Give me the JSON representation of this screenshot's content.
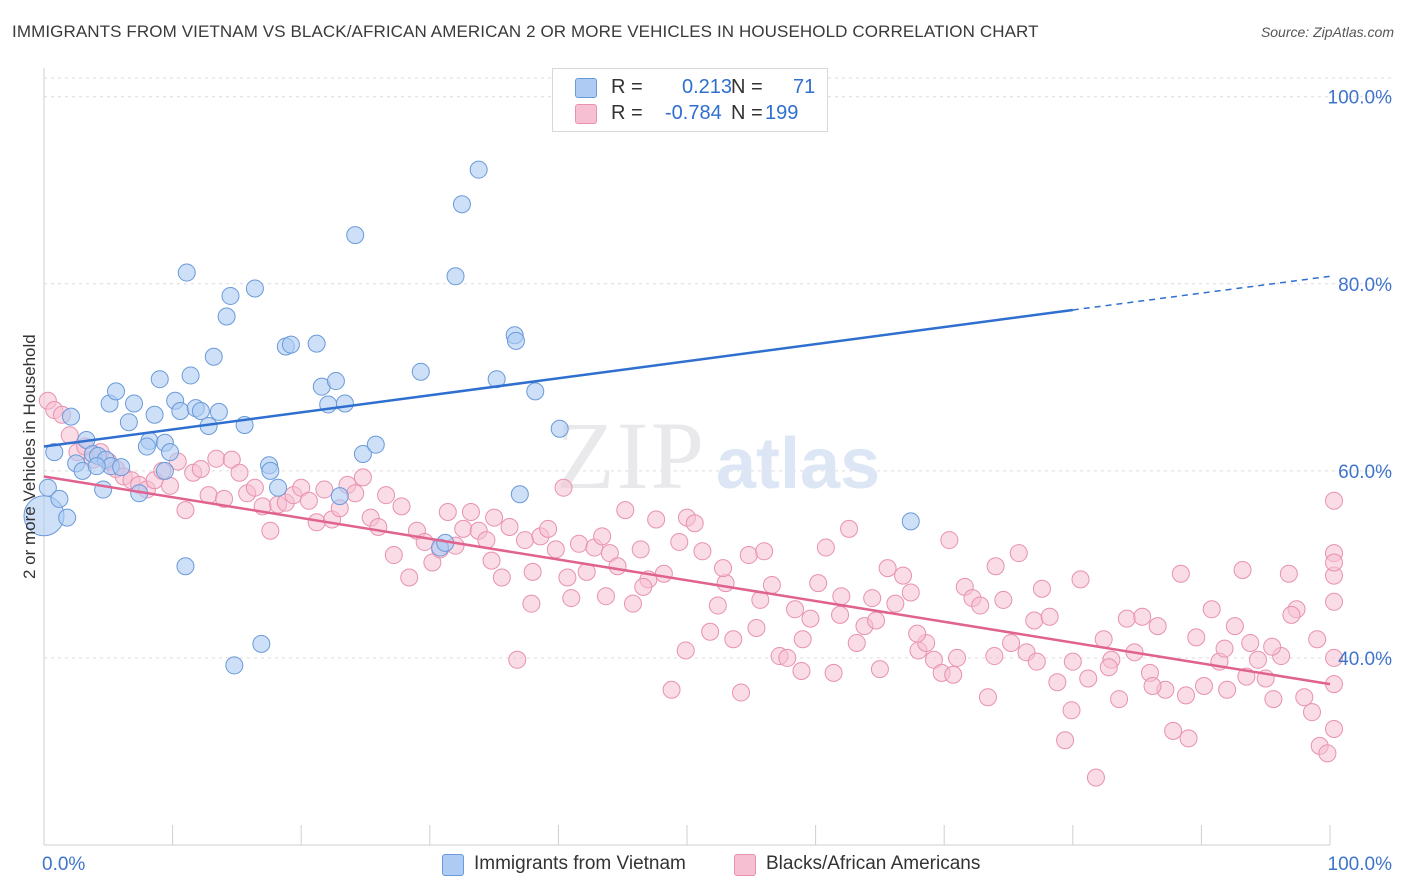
{
  "title": "IMMIGRANTS FROM VIETNAM VS BLACK/AFRICAN AMERICAN 2 OR MORE VEHICLES IN HOUSEHOLD CORRELATION CHART",
  "source": "Source: ZipAtlas.com",
  "watermark": "ZIPatlas",
  "legend": {
    "r_label": "R =",
    "n_label": "N =",
    "series1": {
      "r": "0.213",
      "n": "71"
    },
    "series2": {
      "r": "-0.784",
      "n": "199"
    }
  },
  "bottom_legend": {
    "series1": "Immigrants from Vietnam",
    "series2": "Blacks/African Americans"
  },
  "colors": {
    "blue_fill": "#aecbf3",
    "blue_stroke": "#6a9ad8",
    "blue_line": "#2f6fd0",
    "pink_fill": "#f6bfd2",
    "pink_stroke": "#e891b1",
    "pink_line": "#e0628f",
    "axis_label": "#3f74cc",
    "grid": "#dcdcdc"
  },
  "chart_data": {
    "type": "scatter",
    "title": "IMMIGRANTS FROM VIETNAM VS BLACK/AFRICAN AMERICAN 2 OR MORE VEHICLES IN HOUSEHOLD CORRELATION CHART",
    "xlabel": "",
    "ylabel": "2 or more Vehicles in Household",
    "xlim": [
      0,
      100
    ],
    "ylim": [
      20,
      102
    ],
    "x_tick_labels": [
      "0.0%",
      "100.0%"
    ],
    "y_tick_labels": [
      "40.0%",
      "60.0%",
      "80.0%",
      "100.0%"
    ],
    "y_ticks": [
      40,
      60,
      80,
      100
    ],
    "grid": true,
    "legend_position": "top-center",
    "series": [
      {
        "name": "Immigrants from Vietnam",
        "r": 0.213,
        "n": 71,
        "trend": {
          "x0": 0,
          "y0": 62.6,
          "x1": 80,
          "y1": 77.2,
          "dashed_to_x": 100,
          "dashed_to_y": 80.8
        },
        "points": [
          [
            0,
            55.2
          ],
          [
            0.3,
            58.2
          ],
          [
            0.8,
            62
          ],
          [
            1.2,
            57
          ],
          [
            1.8,
            55
          ],
          [
            2.1,
            65.8
          ],
          [
            2.5,
            60.8
          ],
          [
            3,
            60
          ],
          [
            3.3,
            63.3
          ],
          [
            3.8,
            61.8
          ],
          [
            4.2,
            61.6
          ],
          [
            4.6,
            58
          ],
          [
            5.1,
            67.2
          ],
          [
            4.8,
            61.2
          ],
          [
            5.6,
            68.5
          ],
          [
            5.2,
            60.5
          ],
          [
            6,
            60.4
          ],
          [
            6.6,
            65.2
          ],
          [
            7,
            67.2
          ],
          [
            7.4,
            57.6
          ],
          [
            8.2,
            63.2
          ],
          [
            8,
            62.6
          ],
          [
            8.6,
            66
          ],
          [
            9,
            69.8
          ],
          [
            9.4,
            63
          ],
          [
            9.8,
            62
          ],
          [
            9.4,
            60
          ],
          [
            10.2,
            67.5
          ],
          [
            10.6,
            66.4
          ],
          [
            11,
            49.8
          ],
          [
            11.1,
            81.2
          ],
          [
            11.4,
            70.2
          ],
          [
            11.8,
            66.7
          ],
          [
            12.2,
            66.4
          ],
          [
            12.8,
            64.8
          ],
          [
            13.2,
            72.2
          ],
          [
            13.6,
            66.3
          ],
          [
            14.2,
            76.5
          ],
          [
            14.5,
            78.7
          ],
          [
            14.8,
            39.2
          ],
          [
            15.6,
            64.9
          ],
          [
            16.4,
            79.5
          ],
          [
            16.9,
            41.5
          ],
          [
            17.5,
            60.6
          ],
          [
            17.6,
            60
          ],
          [
            18.2,
            58.2
          ],
          [
            18.8,
            73.3
          ],
          [
            19.2,
            73.5
          ],
          [
            21.2,
            73.6
          ],
          [
            21.6,
            69
          ],
          [
            22.1,
            67.1
          ],
          [
            22.7,
            69.6
          ],
          [
            23,
            57.3
          ],
          [
            23.4,
            67.2
          ],
          [
            24.2,
            85.2
          ],
          [
            24.8,
            61.8
          ],
          [
            25.8,
            62.8
          ],
          [
            29.3,
            70.6
          ],
          [
            30.8,
            51.8
          ],
          [
            31.2,
            52.3
          ],
          [
            32,
            80.8
          ],
          [
            32.5,
            88.5
          ],
          [
            33.8,
            92.2
          ],
          [
            35.2,
            69.8
          ],
          [
            36.6,
            74.5
          ],
          [
            36.7,
            73.9
          ],
          [
            37,
            57.5
          ],
          [
            38.2,
            68.5
          ],
          [
            40.1,
            64.5
          ],
          [
            67.4,
            54.6
          ],
          [
            4.1,
            60.5
          ]
        ]
      },
      {
        "name": "Blacks/African Americans",
        "r": -0.784,
        "n": 199,
        "trend": {
          "x0": 0,
          "y0": 59.4,
          "x1": 100,
          "y1": 37.2
        },
        "points": [
          [
            0.3,
            67.5
          ],
          [
            0.8,
            66.5
          ],
          [
            1.4,
            66
          ],
          [
            2,
            63.8
          ],
          [
            2.6,
            62
          ],
          [
            3.2,
            62.6
          ],
          [
            3.8,
            61.2
          ],
          [
            4.4,
            62
          ],
          [
            5,
            61
          ],
          [
            5.6,
            60.2
          ],
          [
            6.2,
            59.4
          ],
          [
            6.8,
            59
          ],
          [
            7.4,
            58.5
          ],
          [
            8,
            58
          ],
          [
            8.6,
            59
          ],
          [
            9.2,
            60
          ],
          [
            9.8,
            58.4
          ],
          [
            10.4,
            61
          ],
          [
            11,
            55.8
          ],
          [
            11.6,
            59.8
          ],
          [
            12.2,
            60.2
          ],
          [
            12.8,
            57.4
          ],
          [
            13.4,
            61.3
          ],
          [
            14,
            57
          ],
          [
            14.6,
            61.2
          ],
          [
            15.2,
            59.8
          ],
          [
            15.8,
            57.6
          ],
          [
            16.4,
            58.2
          ],
          [
            17,
            56.2
          ],
          [
            17.6,
            53.6
          ],
          [
            18.2,
            56.4
          ],
          [
            18.8,
            56.6
          ],
          [
            19.4,
            57.4
          ],
          [
            20,
            58.2
          ],
          [
            20.6,
            56.8
          ],
          [
            21.2,
            54.5
          ],
          [
            21.8,
            58
          ],
          [
            22.4,
            54.8
          ],
          [
            23,
            56
          ],
          [
            23.6,
            58.5
          ],
          [
            24.2,
            57.6
          ],
          [
            24.8,
            59.3
          ],
          [
            25.4,
            55
          ],
          [
            26,
            54
          ],
          [
            26.6,
            57.4
          ],
          [
            27.2,
            51
          ],
          [
            27.8,
            56.2
          ],
          [
            28.4,
            48.6
          ],
          [
            29,
            53.6
          ],
          [
            29.6,
            52.4
          ],
          [
            30.2,
            50.2
          ],
          [
            30.8,
            51.6
          ],
          [
            31.4,
            55.6
          ],
          [
            32,
            52
          ],
          [
            32.6,
            53.8
          ],
          [
            33.2,
            55.6
          ],
          [
            33.8,
            53.6
          ],
          [
            34.4,
            52.6
          ],
          [
            35,
            55
          ],
          [
            35.6,
            48.6
          ],
          [
            36.2,
            54
          ],
          [
            36.8,
            39.8
          ],
          [
            37.4,
            52.6
          ],
          [
            38,
            49.2
          ],
          [
            38.6,
            53
          ],
          [
            39.2,
            53.8
          ],
          [
            39.8,
            51.6
          ],
          [
            40.4,
            58.2
          ],
          [
            41,
            46.4
          ],
          [
            41.6,
            52.2
          ],
          [
            42.2,
            49.2
          ],
          [
            42.8,
            51.8
          ],
          [
            43.4,
            53
          ],
          [
            44,
            51.2
          ],
          [
            44.6,
            49.8
          ],
          [
            45.2,
            55.8
          ],
          [
            45.8,
            45.8
          ],
          [
            46.4,
            51.6
          ],
          [
            47,
            48.4
          ],
          [
            47.6,
            54.8
          ],
          [
            48.2,
            49
          ],
          [
            48.8,
            36.6
          ],
          [
            49.4,
            52.4
          ],
          [
            50,
            55
          ],
          [
            50.6,
            54.4
          ],
          [
            51.2,
            51.4
          ],
          [
            51.8,
            42.8
          ],
          [
            52.4,
            45.6
          ],
          [
            53,
            48
          ],
          [
            53.6,
            42
          ],
          [
            54.2,
            36.3
          ],
          [
            54.8,
            51
          ],
          [
            55.4,
            43.2
          ],
          [
            56,
            51.4
          ],
          [
            56.6,
            47.8
          ],
          [
            57.2,
            40.2
          ],
          [
            57.8,
            40
          ],
          [
            58.4,
            45.2
          ],
          [
            59,
            42
          ],
          [
            59.6,
            44.2
          ],
          [
            60.2,
            48
          ],
          [
            60.8,
            51.8
          ],
          [
            61.4,
            38.4
          ],
          [
            62,
            46.6
          ],
          [
            62.6,
            53.8
          ],
          [
            63.2,
            41.6
          ],
          [
            63.8,
            43.4
          ],
          [
            64.4,
            46.4
          ],
          [
            65,
            38.8
          ],
          [
            65.6,
            49.6
          ],
          [
            66.2,
            45.8
          ],
          [
            66.8,
            48.8
          ],
          [
            67.4,
            47
          ],
          [
            68,
            40.8
          ],
          [
            68.6,
            41.6
          ],
          [
            69.2,
            39.8
          ],
          [
            69.8,
            38.4
          ],
          [
            70.4,
            52.6
          ],
          [
            71,
            40
          ],
          [
            71.6,
            47.6
          ],
          [
            72.2,
            46.4
          ],
          [
            72.8,
            45.6
          ],
          [
            73.4,
            35.8
          ],
          [
            74,
            49.8
          ],
          [
            74.6,
            46.2
          ],
          [
            75.2,
            41.6
          ],
          [
            75.8,
            51.2
          ],
          [
            76.4,
            40.6
          ],
          [
            77,
            44
          ],
          [
            77.6,
            47.4
          ],
          [
            78.2,
            44.4
          ],
          [
            78.8,
            37.4
          ],
          [
            79.4,
            31.2
          ],
          [
            80,
            39.6
          ],
          [
            80.6,
            48.4
          ],
          [
            81.2,
            37.8
          ],
          [
            81.8,
            27.2
          ],
          [
            82.4,
            42
          ],
          [
            83,
            39.8
          ],
          [
            83.6,
            35.6
          ],
          [
            84.2,
            44.2
          ],
          [
            84.8,
            40.6
          ],
          [
            85.4,
            44.4
          ],
          [
            86,
            38.4
          ],
          [
            86.6,
            43.4
          ],
          [
            87.2,
            36.6
          ],
          [
            87.8,
            32.2
          ],
          [
            88.4,
            49
          ],
          [
            89,
            31.4
          ],
          [
            89.6,
            42.2
          ],
          [
            90.2,
            37
          ],
          [
            90.8,
            45.2
          ],
          [
            91.4,
            39.6
          ],
          [
            92,
            36.6
          ],
          [
            92.6,
            43.4
          ],
          [
            93.2,
            49.4
          ],
          [
            93.8,
            41.6
          ],
          [
            94.4,
            39.8
          ],
          [
            95,
            37.8
          ],
          [
            95.6,
            35.6
          ],
          [
            96.2,
            40.2
          ],
          [
            96.8,
            49
          ],
          [
            97.4,
            45.2
          ],
          [
            98,
            35.8
          ],
          [
            98.6,
            34.2
          ],
          [
            99.2,
            30.6
          ],
          [
            99.8,
            29.8
          ],
          [
            100.4,
            37.2
          ],
          [
            101,
            32.4
          ],
          [
            101.6,
            51.2
          ],
          [
            102.2,
            48.8
          ],
          [
            102.8,
            46
          ],
          [
            103.4,
            40
          ],
          [
            104,
            56.8
          ],
          [
            104.6,
            50.2
          ],
          [
            99,
            42
          ],
          [
            97,
            44.6
          ],
          [
            95.5,
            41.2
          ],
          [
            93.5,
            38
          ],
          [
            91.8,
            41
          ],
          [
            88.8,
            36
          ],
          [
            86.2,
            37
          ],
          [
            82.8,
            39
          ],
          [
            79.9,
            34.4
          ],
          [
            77.2,
            39.6
          ],
          [
            73.9,
            40.2
          ],
          [
            70.7,
            38.2
          ],
          [
            67.9,
            42.6
          ],
          [
            64.7,
            44
          ],
          [
            61.9,
            44.6
          ],
          [
            58.9,
            38.6
          ],
          [
            55.7,
            46.2
          ],
          [
            52.8,
            49.6
          ],
          [
            49.9,
            40.8
          ],
          [
            46.6,
            47.6
          ],
          [
            43.7,
            46.6
          ],
          [
            40.7,
            48.6
          ],
          [
            37.9,
            45.8
          ],
          [
            34.8,
            50.4
          ]
        ]
      }
    ]
  }
}
